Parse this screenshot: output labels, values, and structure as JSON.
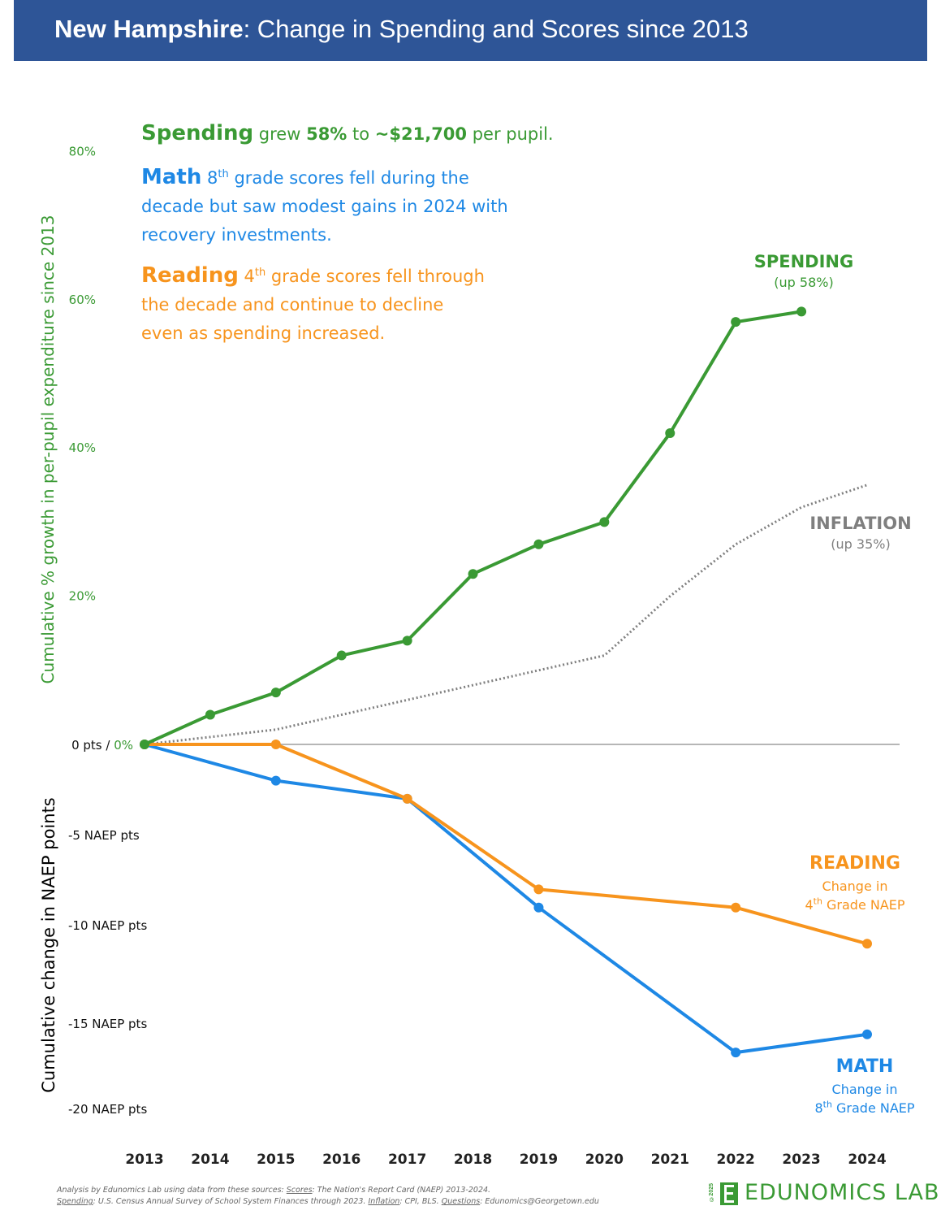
{
  "title": {
    "state": "New Hampshire",
    "rest": ": Change in Spending and Scores since 2013"
  },
  "annotations": {
    "spending_head": "Spending",
    "spending_text_1": " grew ",
    "spending_pct": "58%",
    "spending_text_2": " to ",
    "spending_amount": "~$21,700",
    "spending_text_3": " per pupil.",
    "math_head": "Math",
    "math_grade": "8",
    "math_sup": "th",
    "math_text_1": " grade scores fell during the",
    "math_text_2": "decade but saw modest gains in 2024 with",
    "math_text_3": "recovery investments.",
    "reading_head": "Reading",
    "reading_grade": "4",
    "reading_sup": "th",
    "reading_text_1": " grade scores fell through",
    "reading_text_2": "the decade and continue to decline",
    "reading_text_3": "even as spending increased."
  },
  "series_labels": {
    "spending": {
      "title": "SPENDING",
      "sub": "(up 58%)"
    },
    "inflation": {
      "title": "INFLATION",
      "sub": "(up 35%)"
    },
    "reading": {
      "title": "READING",
      "sub1": "Change in",
      "sub2_num": "4",
      "sub2_sup": "th",
      "sub2_rest": " Grade NAEP"
    },
    "math": {
      "title": "MATH",
      "sub1": "Change in",
      "sub2_num": "8",
      "sub2_sup": "th",
      "sub2_rest": " Grade NAEP"
    }
  },
  "footer": {
    "line1_a": "Analysis by Edunomics Lab using data from these sources: ",
    "line1_scores_label": "Scores",
    "line1_b": ": The Nation's Report Card (NAEP) 2013-2024.",
    "line2_spending_label": "Spending",
    "line2_a": ": U.S. Census Annual Survey of School System Finances through 2023. ",
    "line2_inflation_label": "Inflation",
    "line2_b": ": CPI, BLS. ",
    "line2_questions_label": "Questions",
    "line2_c": ": Edunomics@Georgetown.edu"
  },
  "logo": {
    "copyright": "©2025",
    "text": "EDUNOMICS LAB"
  },
  "colors": {
    "spending": "#3a9a34",
    "math": "#1e88e5",
    "reading": "#f7941d",
    "inflation": "#808080",
    "title_bg": "#2e5597"
  },
  "chart_data": {
    "type": "line",
    "ylabel_top": "Cumulative % growth in per-pupil expenditure since 2013",
    "ylabel_bottom": "Cumulative change in NAEP points",
    "x": [
      2013,
      2014,
      2015,
      2016,
      2017,
      2018,
      2019,
      2020,
      2021,
      2022,
      2023,
      2024
    ],
    "x_tick_labels": [
      "2013",
      "2014",
      "2015",
      "2016",
      "2017",
      "2018",
      "2019",
      "2020",
      "2021",
      "2022",
      "2023",
      "2024"
    ],
    "y_top_ticks": [
      {
        "value": 20,
        "label": "20%"
      },
      {
        "value": 40,
        "label": "40%"
      },
      {
        "value": 60,
        "label": "60%"
      },
      {
        "value": 80,
        "label": "80%"
      }
    ],
    "y_zero_label_a": "0 pts / ",
    "y_zero_label_b": "0%",
    "y_bottom_ticks": [
      {
        "value": -5,
        "label": "-5 NAEP pts"
      },
      {
        "value": -10,
        "label": "-10 NAEP pts"
      },
      {
        "value": -15,
        "label": "-15 NAEP pts"
      },
      {
        "value": -20,
        "label": "-20 NAEP pts"
      }
    ],
    "series": [
      {
        "name": "SPENDING",
        "units": "percent",
        "style": "solid-markers",
        "x": [
          2013,
          2014,
          2015,
          2016,
          2017,
          2018,
          2019,
          2020,
          2021,
          2022,
          2023
        ],
        "values": [
          0,
          4,
          7,
          12,
          14,
          23,
          27,
          30,
          42,
          57,
          58.4
        ]
      },
      {
        "name": "INFLATION",
        "units": "percent",
        "style": "dotted",
        "x": [
          2013,
          2015,
          2017,
          2019,
          2020,
          2021,
          2022,
          2023,
          2024
        ],
        "values": [
          0,
          2,
          6,
          10,
          12,
          20,
          27,
          32,
          35
        ]
      },
      {
        "name": "READING",
        "units": "naep_points",
        "style": "solid-markers",
        "x": [
          2013,
          2015,
          2017,
          2019,
          2022,
          2024
        ],
        "values": [
          0,
          0,
          -3,
          -8,
          -9,
          -11
        ]
      },
      {
        "name": "MATH",
        "units": "naep_points",
        "style": "solid-markers",
        "x": [
          2013,
          2015,
          2017,
          2019,
          2022,
          2024
        ],
        "values": [
          0,
          -2,
          -3,
          -9,
          -17,
          -16
        ]
      }
    ]
  }
}
